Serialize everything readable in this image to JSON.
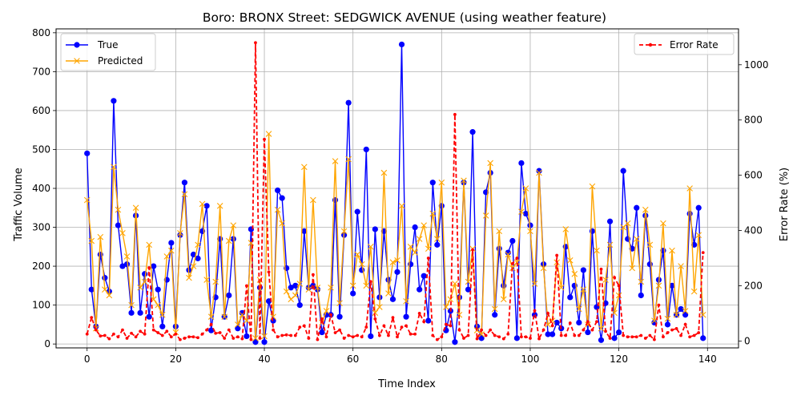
{
  "chart_data": {
    "type": "line",
    "title": "Boro: BRONX Street: SEDGWICK AVENUE (using weather feature)",
    "xlabel": "Time Index",
    "ylabel": "Traffic Volume",
    "y2label": "Error Rate (%)",
    "xlim": [
      -7,
      147
    ],
    "ylim": [
      -10,
      810
    ],
    "y2lim": [
      -25,
      1130
    ],
    "x_ticks": [
      0,
      20,
      40,
      60,
      80,
      100,
      120,
      140
    ],
    "x_tick_labels": [
      "0",
      "20",
      "40",
      "60",
      "80",
      "100",
      "120",
      "140"
    ],
    "y_ticks": [
      0,
      100,
      200,
      300,
      400,
      500,
      600,
      700,
      800
    ],
    "y_tick_labels": [
      "0",
      "100",
      "200",
      "300",
      "400",
      "500",
      "600",
      "700",
      "800"
    ],
    "y2_ticks": [
      0,
      200,
      400,
      600,
      800,
      1000
    ],
    "y2_tick_labels": [
      "0",
      "200",
      "400",
      "600",
      "800",
      "1000"
    ],
    "grid": true,
    "legend_left": {
      "placement": "upper-left",
      "entries": [
        "True",
        "Predicted"
      ]
    },
    "legend_right": {
      "placement": "upper-right",
      "entries": [
        "Error Rate"
      ]
    },
    "colors": {
      "true": "#0000ff",
      "predicted": "#ffa500",
      "error": "#ff0000",
      "grid": "#b0b0b0"
    },
    "series": [
      {
        "name": "True",
        "axis": "left",
        "values": [
          490,
          140,
          45,
          230,
          170,
          135,
          625,
          305,
          200,
          205,
          80,
          330,
          80,
          180,
          70,
          200,
          140,
          45,
          165,
          260,
          45,
          280,
          415,
          190,
          230,
          220,
          290,
          355,
          35,
          120,
          270,
          70,
          125,
          270,
          40,
          80,
          20,
          295,
          5,
          145,
          5,
          110,
          60,
          395,
          375,
          195,
          145,
          150,
          100,
          290,
          145,
          150,
          140,
          30,
          75,
          75,
          370,
          70,
          280,
          620,
          130,
          340,
          190,
          500,
          20,
          295,
          120,
          290,
          165,
          115,
          185,
          770,
          70,
          205,
          300,
          140,
          175,
          60,
          415,
          255,
          355,
          35,
          85,
          5,
          120,
          415,
          140,
          545,
          45,
          15,
          390,
          440,
          75,
          245,
          150,
          235,
          265,
          15,
          465,
          335,
          305,
          75,
          445,
          205,
          25,
          25,
          55,
          40,
          250,
          120,
          150,
          55,
          190,
          30,
          290,
          95,
          10,
          105,
          315,
          15,
          30,
          445,
          270,
          245,
          350,
          125,
          330,
          205,
          55,
          165,
          240,
          50,
          150,
          75,
          90,
          75,
          335,
          255,
          350,
          15
        ]
      },
      {
        "name": "Predicted",
        "axis": "left",
        "values": [
          370,
          265,
          40,
          275,
          140,
          125,
          455,
          345,
          285,
          225,
          100,
          350,
          145,
          160,
          255,
          115,
          100,
          75,
          225,
          240,
          30,
          285,
          385,
          170,
          200,
          255,
          360,
          165,
          70,
          160,
          355,
          70,
          265,
          305,
          50,
          75,
          60,
          260,
          15,
          165,
          20,
          540,
          70,
          345,
          310,
          135,
          115,
          125,
          155,
          455,
          140,
          370,
          145,
          55,
          85,
          145,
          470,
          105,
          290,
          475,
          150,
          230,
          205,
          150,
          250,
          80,
          95,
          440,
          130,
          210,
          215,
          355,
          110,
          250,
          235,
          270,
          305,
          245,
          335,
          270,
          415,
          95,
          115,
          155,
          75,
          420,
          160,
          245,
          35,
          25,
          330,
          465,
          90,
          290,
          115,
          230,
          195,
          210,
          340,
          400,
          290,
          155,
          440,
          195,
          50,
          60,
          210,
          145,
          295,
          215,
          180,
          90,
          140,
          50,
          405,
          240,
          40,
          165,
          255,
          80,
          125,
          300,
          310,
          195,
          270,
          160,
          345,
          255,
          60,
          150,
          310,
          65,
          240,
          75,
          200,
          85,
          400,
          135,
          280,
          75
        ]
      },
      {
        "name": "Error Rate",
        "axis": "right",
        "values": [
          25,
          85,
          40,
          18,
          20,
          8,
          25,
          15,
          40,
          10,
          28,
          15,
          35,
          25,
          265,
          40,
          30,
          20,
          35,
          15,
          25,
          5,
          10,
          15,
          15,
          12,
          25,
          40,
          60,
          28,
          30,
          10,
          40,
          10,
          15,
          8,
          200,
          5,
          1080,
          10,
          730,
          250,
          40,
          15,
          20,
          22,
          20,
          20,
          50,
          55,
          10,
          240,
          5,
          80,
          15,
          95,
          30,
          40,
          10,
          20,
          15,
          20,
          15,
          50,
          215,
          80,
          20,
          55,
          20,
          85,
          15,
          50,
          55,
          25,
          25,
          100,
          70,
          300,
          20,
          5,
          15,
          60,
          55,
          820,
          40,
          10,
          20,
          330,
          8,
          40,
          20,
          40,
          20,
          15,
          8,
          25,
          280,
          300,
          15,
          15,
          10,
          110,
          8,
          40,
          100,
          55,
          310,
          20,
          20,
          65,
          20,
          20,
          40,
          70,
          40,
          70,
          260,
          35,
          10,
          230,
          200,
          20,
          15,
          15,
          15,
          20,
          10,
          20,
          5,
          130,
          15,
          30,
          40,
          45,
          20,
          60,
          15,
          20,
          30,
          320
        ]
      }
    ]
  }
}
